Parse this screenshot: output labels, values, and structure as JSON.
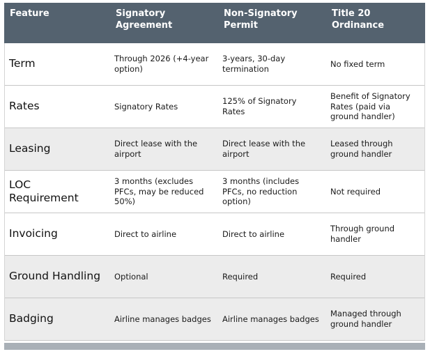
{
  "table": {
    "headers": [
      "Feature",
      "Signatory Agreement",
      "Non-Signatory Permit",
      "Title 20 Ordinance"
    ],
    "rows": [
      {
        "feature": "Term",
        "signatory": "Through 2026 (+4-year option)",
        "non_signatory": "3-years, 30-day termination",
        "title20": "No fixed term"
      },
      {
        "feature": "Rates",
        "signatory": "Signatory Rates",
        "non_signatory": "125% of Signatory Rates",
        "title20": "Benefit of Signatory Rates (paid via ground handler)"
      },
      {
        "feature": "Leasing",
        "signatory": "Direct lease with the airport",
        "non_signatory": "Direct lease with the airport",
        "title20": "Leased through ground handler"
      },
      {
        "feature": "LOC Requirement",
        "signatory": "3 months (excludes PFCs, may be reduced 50%)",
        "non_signatory": "3 months (includes PFCs, no reduction option)",
        "title20": "Not required"
      },
      {
        "feature": "Invoicing",
        "signatory": "Direct to airline",
        "non_signatory": "Direct to airline",
        "title20": "Through ground handler"
      },
      {
        "feature": "Ground Handling",
        "signatory": "Optional",
        "non_signatory": "Required",
        "title20": "Required"
      },
      {
        "feature": "Badging",
        "signatory": "Airline manages badges",
        "non_signatory": "Airline manages badges",
        "title20": "Managed through ground handler"
      }
    ]
  },
  "colors": {
    "header_bg": "#54626f",
    "header_text": "#ffffff",
    "row_shaded_bg": "#ececec",
    "row_bg": "#ffffff",
    "border": "#c6c6c6",
    "bottom_strip": "#a9b0b7"
  }
}
